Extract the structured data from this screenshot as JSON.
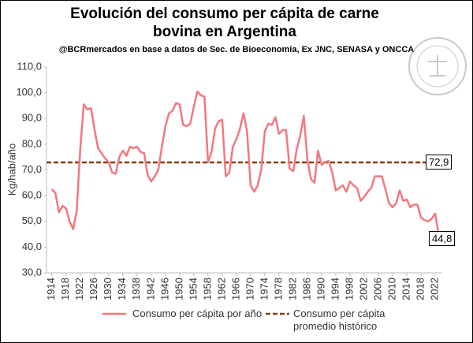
{
  "chart_data": {
    "type": "line",
    "title": "Evolución del consumo per cápita de carne bovina en Argentina",
    "subtitle": "@BCRmercados  en base a datos de Sec. de Bioeconomía,  Ex JNC, SENASA y ONCCA",
    "y_label": "Kg/hab/año",
    "x": [
      1914,
      1915,
      1916,
      1917,
      1918,
      1919,
      1920,
      1921,
      1922,
      1923,
      1924,
      1925,
      1926,
      1927,
      1928,
      1929,
      1930,
      1931,
      1932,
      1933,
      1934,
      1935,
      1936,
      1937,
      1938,
      1939,
      1940,
      1941,
      1942,
      1943,
      1944,
      1945,
      1946,
      1947,
      1948,
      1949,
      1950,
      1951,
      1952,
      1953,
      1954,
      1955,
      1956,
      1957,
      1958,
      1959,
      1960,
      1961,
      1962,
      1963,
      1964,
      1965,
      1966,
      1967,
      1968,
      1969,
      1970,
      1971,
      1972,
      1973,
      1974,
      1975,
      1976,
      1977,
      1978,
      1979,
      1980,
      1981,
      1982,
      1983,
      1984,
      1985,
      1986,
      1987,
      1988,
      1989,
      1990,
      1991,
      1992,
      1993,
      1994,
      1995,
      1996,
      1997,
      1998,
      1999,
      2000,
      2001,
      2002,
      2003,
      2004,
      2005,
      2006,
      2007,
      2008,
      2009,
      2010,
      2011,
      2012,
      2013,
      2014,
      2015,
      2016,
      2017,
      2018,
      2019,
      2020,
      2021,
      2022,
      2023
    ],
    "series": [
      {
        "name": "Consumo per cápita por año",
        "color": "#f4777f",
        "values": [
          62.5,
          61,
          53.5,
          56,
          55,
          50,
          47,
          54,
          78,
          95.5,
          93.5,
          94,
          86,
          78.5,
          76.5,
          74.5,
          73,
          69,
          68.5,
          75,
          77.5,
          75.5,
          79,
          78.5,
          79,
          77,
          76.5,
          68,
          65.5,
          67.5,
          70,
          79,
          87,
          92,
          93,
          96,
          95.5,
          87.5,
          87,
          88,
          94.5,
          100.5,
          99,
          98.5,
          73,
          77,
          86,
          89,
          89.5,
          67.5,
          69,
          79,
          82,
          86,
          92,
          85,
          64,
          61.5,
          64,
          70,
          85,
          88,
          87.5,
          90.5,
          84,
          85.5,
          85.5,
          70.5,
          69.5,
          78,
          83.5,
          91,
          74,
          66.5,
          65,
          77.5,
          72,
          73,
          73.5,
          69,
          62,
          63,
          64,
          61.5,
          65.5,
          64,
          63,
          58,
          59.5,
          61.5,
          63,
          67.5,
          67.5,
          67.5,
          62.5,
          57,
          55.5,
          57,
          62,
          58,
          58.5,
          55.5,
          56.5,
          56.5,
          51.5,
          50.5,
          50,
          51,
          53,
          44.8
        ],
        "value_labels": [
          null,
          null,
          null,
          null,
          null,
          null,
          null,
          null,
          null,
          null,
          null,
          null,
          null,
          null,
          null,
          null,
          null,
          null,
          null,
          null,
          null,
          null,
          null,
          null,
          null,
          null,
          null,
          null,
          null,
          null,
          null,
          null,
          null,
          null,
          null,
          null,
          null,
          null,
          null,
          null,
          null,
          null,
          null,
          null,
          null,
          null,
          null,
          null,
          null,
          null,
          null,
          null,
          null,
          null,
          null,
          null,
          null,
          null,
          null,
          null,
          null,
          null,
          null,
          null,
          null,
          null,
          null,
          null,
          null,
          null,
          null,
          null,
          null,
          null,
          null,
          null,
          null,
          null,
          null,
          null,
          null,
          null,
          null,
          null,
          null,
          null,
          null,
          null,
          null,
          null,
          null,
          null,
          null,
          null,
          null,
          null,
          null,
          null,
          null,
          null,
          null,
          null,
          null,
          null,
          null,
          null,
          null,
          null,
          null,
          "44,8"
        ]
      }
    ],
    "reference_line": {
      "name": "Consumo per cápita promedio histórico",
      "value": 72.9,
      "label": "72,9",
      "color": "#843c0c",
      "dashed": true
    },
    "xlim": [
      1912.5,
      2024
    ],
    "xticks": [
      1914,
      1918,
      1922,
      1926,
      1930,
      1934,
      1938,
      1942,
      1946,
      1950,
      1954,
      1958,
      1962,
      1966,
      1970,
      1974,
      1978,
      1982,
      1986,
      1990,
      1994,
      1998,
      2002,
      2006,
      2010,
      2014,
      2018,
      2022
    ],
    "ylim": [
      30,
      110
    ],
    "yticks": [
      {
        "value": 30,
        "label": "30,0"
      },
      {
        "value": 40,
        "label": "40,0"
      },
      {
        "value": 50,
        "label": "50,0"
      },
      {
        "value": 60,
        "label": "60,0"
      },
      {
        "value": 70,
        "label": "70,0"
      },
      {
        "value": 80,
        "label": "80,0"
      },
      {
        "value": 90,
        "label": "90,0"
      },
      {
        "value": 100,
        "label": "100,0"
      },
      {
        "value": 110,
        "label": "110,0"
      }
    ],
    "grid": false,
    "legend": "bottom"
  }
}
